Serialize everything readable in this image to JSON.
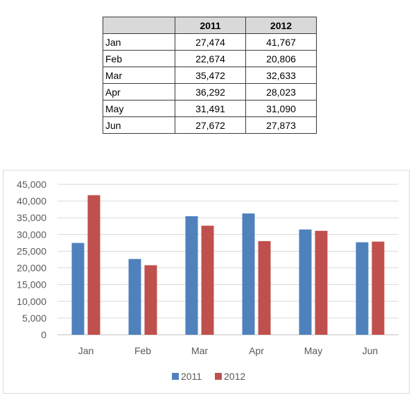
{
  "table": {
    "headers": [
      "",
      "2011",
      "2012"
    ],
    "rows": [
      {
        "month": "Jan",
        "v2011": "27,474",
        "v2012": "41,767"
      },
      {
        "month": "Feb",
        "v2011": "22,674",
        "v2012": "20,806"
      },
      {
        "month": "Mar",
        "v2011": "35,472",
        "v2012": "32,633"
      },
      {
        "month": "Apr",
        "v2011": "36,292",
        "v2012": "28,023"
      },
      {
        "month": "May",
        "v2011": "31,491",
        "v2012": "31,090"
      },
      {
        "month": "Jun",
        "v2011": "27,672",
        "v2012": "27,873"
      }
    ]
  },
  "chart_data": {
    "type": "bar",
    "categories": [
      "Jan",
      "Feb",
      "Mar",
      "Apr",
      "May",
      "Jun"
    ],
    "series": [
      {
        "name": "2011",
        "color": "#4f81bd",
        "values": [
          27474,
          22674,
          35472,
          36292,
          31491,
          27672
        ]
      },
      {
        "name": "2012",
        "color": "#c0504d",
        "values": [
          41767,
          20806,
          32633,
          28023,
          31090,
          27873
        ]
      }
    ],
    "ylim": [
      0,
      45000
    ],
    "yticks": [
      0,
      5000,
      10000,
      15000,
      20000,
      25000,
      30000,
      35000,
      40000,
      45000
    ],
    "ytick_labels": [
      "0",
      "5,000",
      "10,000",
      "15,000",
      "20,000",
      "25,000",
      "30,000",
      "35,000",
      "40,000",
      "45,000"
    ],
    "grid": true,
    "legend_position": "bottom",
    "title": "",
    "xlabel": "",
    "ylabel": ""
  }
}
